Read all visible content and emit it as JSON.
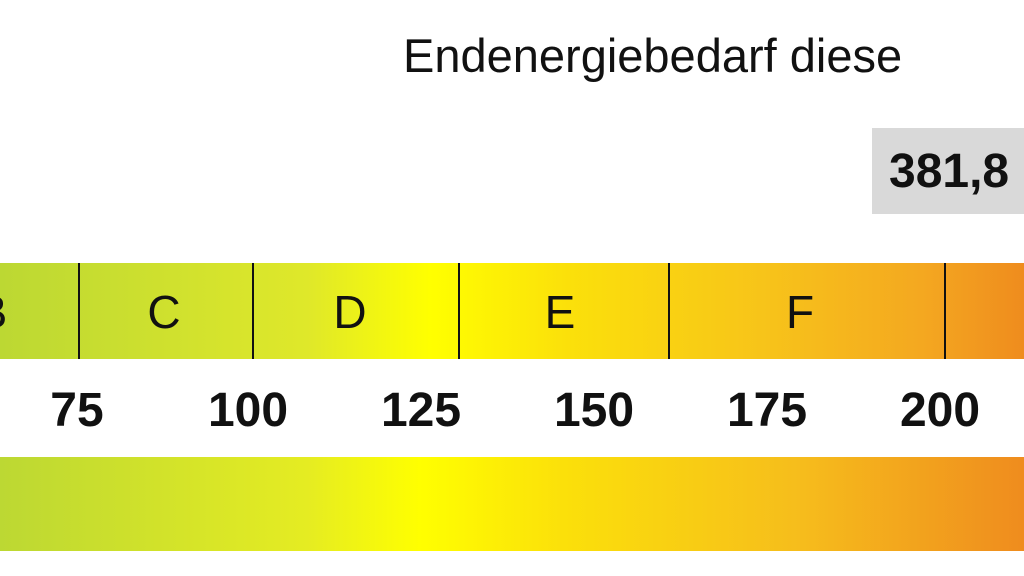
{
  "title": "Endenergiebedarf diese",
  "value": "381,8",
  "classes": [
    {
      "label": "B"
    },
    {
      "label": "C"
    },
    {
      "label": "D"
    },
    {
      "label": "E"
    },
    {
      "label": "F"
    }
  ],
  "ticks": [
    "75",
    "100",
    "125",
    "150",
    "175",
    "200"
  ],
  "colors": {
    "green": "#bcd833",
    "yellow": "#ffff00",
    "orange": "#ef8c1e",
    "value_box": "#d9d9d9"
  }
}
